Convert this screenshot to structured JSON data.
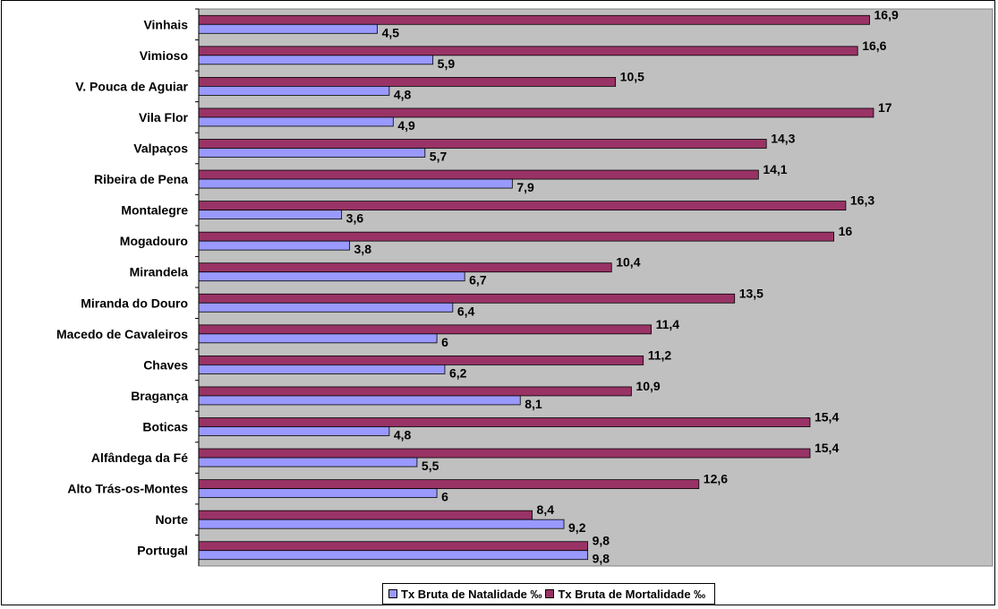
{
  "colors": {
    "natalidade": "#9999ff",
    "mortalidade": "#993366",
    "plot_background": "#c0c0c0"
  },
  "chart_data": {
    "type": "bar",
    "orientation": "horizontal",
    "categories": [
      "Vinhais",
      "Vimioso",
      "V. Pouca de Aguiar",
      "Vila Flor",
      "Valpaços",
      "Ribeira de Pena",
      "Montalegre",
      "Mogadouro",
      "Mirandela",
      "Miranda do Douro",
      "Macedo de Cavaleiros",
      "Chaves",
      "Bragança",
      "Boticas",
      "Alfândega da Fé",
      "Alto Trás-os-Montes",
      "Norte",
      "Portugal"
    ],
    "series": [
      {
        "name": "Tx Bruta de Natalidade ‰",
        "values": [
          4.5,
          5.9,
          4.8,
          4.9,
          5.7,
          7.9,
          3.6,
          3.8,
          6.7,
          6.4,
          6,
          6.2,
          8.1,
          4.8,
          5.5,
          6,
          9.2,
          9.8
        ],
        "labels": [
          "4,5",
          "5,9",
          "4,8",
          "4,9",
          "5,7",
          "7,9",
          "3,6",
          "3,8",
          "6,7",
          "6,4",
          "6",
          "6,2",
          "8,1",
          "4,8",
          "5,5",
          "6",
          "9,2",
          "9,8"
        ]
      },
      {
        "name": "Tx Bruta de Mortalidade ‰",
        "values": [
          16.9,
          16.6,
          10.5,
          17,
          14.3,
          14.1,
          16.3,
          16,
          10.4,
          13.5,
          11.4,
          11.2,
          10.9,
          15.4,
          15.4,
          12.6,
          8.4,
          9.8
        ],
        "labels": [
          "16,9",
          "16,6",
          "10,5",
          "17",
          "14,3",
          "14,1",
          "16,3",
          "16",
          "10,4",
          "13,5",
          "11,4",
          "11,2",
          "10,9",
          "15,4",
          "15,4",
          "12,6",
          "8,4",
          "9,8"
        ]
      }
    ],
    "xlim": [
      0,
      20
    ],
    "grid": false,
    "legend_position": "bottom"
  }
}
